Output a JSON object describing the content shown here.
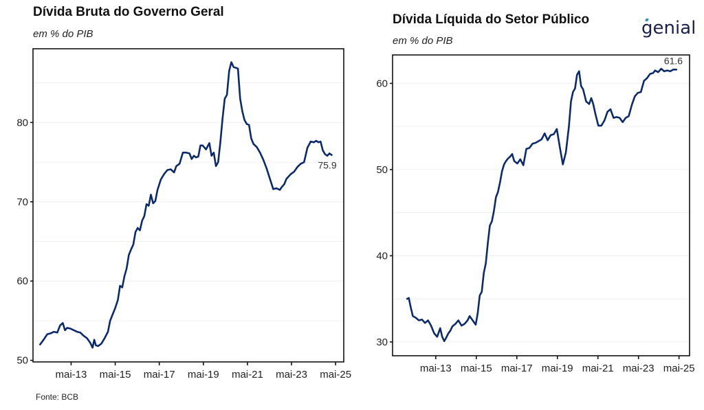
{
  "brand": {
    "logo_text": "genial",
    "accent_color": "#2f8cd9",
    "text_color": "#1b1f4b"
  },
  "source": "Fonte: BCB",
  "line_color": "#0b2a6b",
  "chart_data": [
    {
      "type": "line",
      "title": "Dívida Bruta do Governo Geral",
      "subtitle": "em % do PIB",
      "xlabel": "",
      "ylabel": "",
      "ylim": [
        49.8,
        89.3
      ],
      "xlim": [
        2011.6,
        2025.7
      ],
      "yticks": [
        50,
        60,
        70,
        80
      ],
      "ytick_labels": [
        "50",
        "60",
        "70",
        "80"
      ],
      "minor_gridlines": [
        55,
        65,
        75,
        85
      ],
      "xticks": [
        2013.33,
        2015.33,
        2017.33,
        2019.33,
        2021.33,
        2023.33,
        2025.33
      ],
      "xtick_labels": [
        "mai-13",
        "mai-15",
        "mai-17",
        "mai-19",
        "mai-21",
        "mai-23",
        "mai-25"
      ],
      "grid": true,
      "end_label": "75.9",
      "series": [
        {
          "name": "Dívida Bruta do Governo Geral",
          "x": [
            2011.92,
            2012.08,
            2012.25,
            2012.4,
            2012.55,
            2012.7,
            2012.83,
            2012.95,
            2013.05,
            2013.15,
            2013.3,
            2013.45,
            2013.6,
            2013.75,
            2013.9,
            2014.05,
            2014.2,
            2014.3,
            2014.38,
            2014.45,
            2014.55,
            2014.7,
            2014.85,
            2015.0,
            2015.1,
            2015.2,
            2015.33,
            2015.45,
            2015.55,
            2015.65,
            2015.75,
            2015.85,
            2015.95,
            2016.05,
            2016.15,
            2016.25,
            2016.35,
            2016.45,
            2016.55,
            2016.65,
            2016.75,
            2016.85,
            2016.95,
            2017.05,
            2017.15,
            2017.25,
            2017.4,
            2017.55,
            2017.7,
            2017.85,
            2018.0,
            2018.1,
            2018.25,
            2018.4,
            2018.55,
            2018.7,
            2018.8,
            2018.9,
            2019.0,
            2019.1,
            2019.2,
            2019.3,
            2019.45,
            2019.6,
            2019.7,
            2019.8,
            2019.9,
            2020.0,
            2020.1,
            2020.2,
            2020.3,
            2020.4,
            2020.5,
            2020.6,
            2020.7,
            2020.8,
            2020.9,
            2021.0,
            2021.1,
            2021.2,
            2021.3,
            2021.4,
            2021.5,
            2021.6,
            2021.75,
            2021.9,
            2022.05,
            2022.2,
            2022.35,
            2022.5,
            2022.65,
            2022.8,
            2022.9,
            2023.0,
            2023.1,
            2023.2,
            2023.3,
            2023.45,
            2023.6,
            2023.75,
            2023.9,
            2024.05,
            2024.2,
            2024.35,
            2024.45,
            2024.55,
            2024.65,
            2024.75,
            2024.85,
            2024.95,
            2025.05,
            2025.15
          ],
          "values": [
            52.0,
            52.6,
            53.3,
            53.4,
            53.6,
            53.5,
            54.4,
            54.7,
            53.8,
            54.1,
            54.0,
            53.8,
            53.6,
            53.5,
            53.1,
            52.8,
            52.2,
            51.6,
            52.6,
            51.9,
            51.8,
            52.1,
            52.8,
            53.6,
            55.0,
            55.7,
            56.6,
            57.6,
            59.4,
            59.2,
            60.6,
            61.6,
            63.3,
            64.0,
            64.6,
            66.2,
            66.7,
            66.4,
            67.6,
            68.2,
            69.7,
            69.5,
            70.9,
            69.8,
            70.1,
            71.5,
            72.8,
            73.5,
            74.0,
            74.1,
            73.7,
            74.5,
            74.8,
            76.2,
            76.2,
            76.1,
            75.4,
            75.8,
            75.6,
            75.7,
            77.1,
            77.1,
            76.6,
            77.4,
            75.8,
            76.2,
            74.5,
            75.0,
            77.5,
            80.5,
            83.0,
            83.5,
            86.5,
            87.6,
            87.0,
            86.9,
            86.8,
            83.0,
            81.4,
            80.3,
            79.8,
            79.7,
            78.0,
            77.3,
            76.9,
            76.2,
            75.3,
            74.2,
            72.9,
            71.6,
            71.7,
            71.5,
            71.9,
            72.2,
            72.9,
            73.2,
            73.5,
            73.8,
            74.4,
            74.8,
            75.0,
            76.8,
            77.6,
            77.5,
            77.7,
            77.5,
            77.6,
            76.5,
            76.0,
            75.8,
            76.1,
            75.9
          ]
        }
      ]
    },
    {
      "type": "line",
      "title": "Dívida Líquida do Setor Público",
      "subtitle": "em % do PIB",
      "xlabel": "",
      "ylabel": "",
      "ylim": [
        28.4,
        63.3
      ],
      "xlim": [
        2011.2,
        2025.85
      ],
      "yticks": [
        30,
        40,
        50,
        60
      ],
      "ytick_labels": [
        "30",
        "40",
        "50",
        "60"
      ],
      "minor_gridlines": [
        35,
        45,
        55
      ],
      "xticks": [
        2013.33,
        2015.33,
        2017.33,
        2019.33,
        2021.33,
        2023.33,
        2025.33
      ],
      "xtick_labels": [
        "mai-13",
        "mai-15",
        "mai-17",
        "mai-19",
        "mai-21",
        "mai-23",
        "mai-25"
      ],
      "grid": true,
      "end_label": "61.6",
      "series": [
        {
          "name": "Dívida Líquida do Setor Público",
          "x": [
            2011.92,
            2012.0,
            2012.1,
            2012.2,
            2012.35,
            2012.5,
            2012.65,
            2012.8,
            2012.95,
            2013.1,
            2013.25,
            2013.4,
            2013.55,
            2013.65,
            2013.75,
            2013.85,
            2013.95,
            2014.05,
            2014.15,
            2014.3,
            2014.45,
            2014.6,
            2014.75,
            2014.9,
            2015.0,
            2015.15,
            2015.3,
            2015.4,
            2015.5,
            2015.6,
            2015.7,
            2015.8,
            2015.9,
            2016.0,
            2016.1,
            2016.2,
            2016.3,
            2016.4,
            2016.5,
            2016.6,
            2016.7,
            2016.8,
            2016.9,
            2017.0,
            2017.1,
            2017.2,
            2017.35,
            2017.5,
            2017.65,
            2017.8,
            2017.95,
            2018.1,
            2018.25,
            2018.4,
            2018.55,
            2018.7,
            2018.85,
            2019.0,
            2019.15,
            2019.3,
            2019.45,
            2019.6,
            2019.75,
            2019.9,
            2020.0,
            2020.1,
            2020.2,
            2020.3,
            2020.4,
            2020.5,
            2020.6,
            2020.75,
            2020.9,
            2021.0,
            2021.1,
            2021.2,
            2021.35,
            2021.5,
            2021.65,
            2021.8,
            2021.95,
            2022.1,
            2022.25,
            2022.4,
            2022.55,
            2022.7,
            2022.85,
            2023.0,
            2023.15,
            2023.3,
            2023.45,
            2023.6,
            2023.75,
            2023.9,
            2024.05,
            2024.15,
            2024.3,
            2024.45,
            2024.6,
            2024.75,
            2024.9,
            2025.05,
            2025.2
          ],
          "values": [
            35.0,
            35.1,
            34.0,
            33.0,
            32.8,
            32.5,
            32.6,
            32.2,
            32.5,
            31.9,
            31.0,
            30.6,
            31.6,
            30.6,
            30.1,
            30.5,
            31.0,
            31.3,
            31.8,
            32.1,
            32.5,
            31.9,
            32.1,
            32.5,
            33.0,
            32.5,
            32.0,
            33.3,
            35.4,
            35.8,
            38.0,
            39.1,
            41.5,
            43.5,
            44.0,
            45.2,
            46.8,
            47.4,
            48.5,
            49.8,
            50.6,
            51.0,
            51.3,
            51.5,
            51.8,
            51.0,
            50.7,
            51.2,
            50.5,
            52.4,
            52.5,
            53.0,
            53.1,
            53.3,
            53.5,
            54.2,
            53.4,
            54.0,
            54.1,
            54.7,
            52.6,
            50.6,
            52.0,
            55.0,
            57.9,
            59.0,
            59.4,
            61.0,
            61.4,
            59.7,
            59.3,
            57.9,
            57.6,
            58.3,
            57.6,
            56.5,
            55.1,
            55.1,
            55.7,
            56.7,
            57.0,
            56.0,
            56.1,
            56.0,
            55.5,
            56.0,
            56.2,
            57.5,
            58.5,
            58.9,
            59.0,
            60.3,
            60.6,
            61.1,
            61.2,
            61.5,
            61.3,
            61.7,
            61.4,
            61.5,
            61.4,
            61.6,
            61.6
          ]
        }
      ]
    }
  ]
}
